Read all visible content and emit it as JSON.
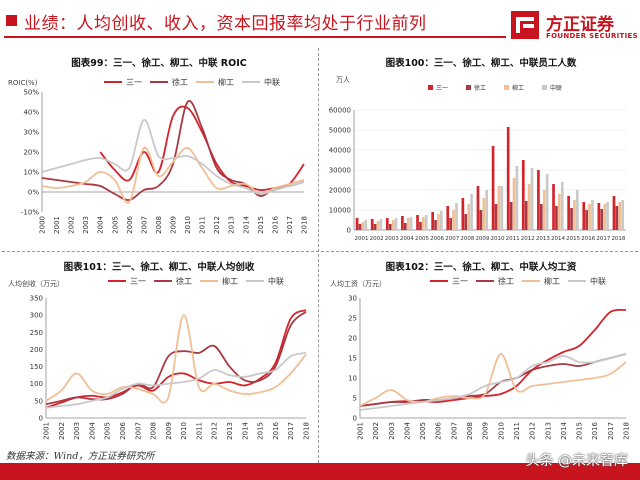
{
  "header": {
    "title": "业绩：人均创收、收入，资本回报率均处于行业前列"
  },
  "logo": {
    "name_cn": "方正证券",
    "name_en": "FOUNDER SECURITIES"
  },
  "source_note": "数据来源：Wind，方正证券研究所",
  "watermark": "头条 @未来智库",
  "colors": {
    "sanyi": "#d4242b",
    "xugong": "#a83a44",
    "liugong": "#f0bf96",
    "zhonglian": "#c9c9c9"
  },
  "chart_data": [
    {
      "type": "line",
      "title": "图表99：三一、徐工、柳工、中联 ROIC",
      "ylabel": "ROIC(%)",
      "ylim": [
        -10,
        50
      ],
      "yticks": [
        "-10%",
        "0%",
        "10%",
        "20%",
        "30%",
        "40%",
        "50%"
      ],
      "categories": [
        "2000",
        "2001",
        "2002",
        "2003",
        "2004",
        "2005",
        "2006",
        "2007",
        "2008",
        "2009",
        "2010",
        "2011",
        "2012",
        "2013",
        "2014",
        "2015",
        "2016",
        "2017",
        "2018"
      ],
      "series": [
        {
          "name": "三一",
          "color": "#d4242b",
          "values": [
            null,
            null,
            null,
            null,
            20,
            11,
            6,
            20,
            10,
            38,
            42,
            30,
            14,
            5,
            3,
            1,
            2,
            4,
            14
          ]
        },
        {
          "name": "徐工",
          "color": "#a83a44",
          "values": [
            7,
            6,
            5,
            4,
            3,
            -1,
            -4,
            1,
            3,
            14,
            45,
            32,
            12,
            6,
            4,
            -2,
            2,
            3,
            5
          ]
        },
        {
          "name": "柳工",
          "color": "#f0bf96",
          "values": [
            3,
            2,
            3,
            5,
            10,
            6,
            -5,
            22,
            8,
            15,
            22,
            12,
            2,
            3,
            4,
            -1,
            2,
            4,
            6
          ]
        },
        {
          "name": "中联",
          "color": "#c9c9c9",
          "values": [
            10,
            12,
            14,
            16,
            17,
            14,
            12,
            36,
            18,
            17,
            18,
            14,
            8,
            4,
            2,
            -1,
            1,
            3,
            5
          ]
        }
      ]
    },
    {
      "type": "bar",
      "title": "图表100：三一、徐工、柳工、中联员工人数",
      "ylabel": "万人",
      "ylim": [
        0,
        60000
      ],
      "yticks": [
        "0",
        "10000",
        "20000",
        "30000",
        "40000",
        "50000",
        "60000"
      ],
      "categories": [
        "2001",
        "2002",
        "2003",
        "2004",
        "2005",
        "2006",
        "2007",
        "2008",
        "2009",
        "2010",
        "2011",
        "2012",
        "2013",
        "2014",
        "2015",
        "2016",
        "2017",
        "2018"
      ],
      "series": [
        {
          "name": "三一",
          "color": "#d4242b",
          "values": [
            6000,
            5500,
            6000,
            7000,
            7500,
            9000,
            12000,
            16000,
            22000,
            42000,
            51500,
            35000,
            30000,
            23000,
            17000,
            14000,
            13500,
            17000
          ]
        },
        {
          "name": "徐工",
          "color": "#a83a44",
          "values": [
            3000,
            3000,
            3000,
            3500,
            4000,
            5000,
            6000,
            8000,
            10000,
            13000,
            14000,
            14500,
            13000,
            12000,
            11000,
            10000,
            10500,
            12000
          ]
        },
        {
          "name": "柳工",
          "color": "#f0bf96",
          "values": [
            4000,
            4500,
            5000,
            6000,
            6500,
            8000,
            10000,
            13000,
            16000,
            22000,
            26000,
            23000,
            20000,
            18000,
            15000,
            13000,
            13000,
            14000
          ]
        },
        {
          "name": "中联",
          "color": "#c9c9c9",
          "values": [
            5000,
            5500,
            6000,
            6500,
            7500,
            9500,
            13500,
            18000,
            20000,
            22000,
            32000,
            31000,
            28000,
            24000,
            20000,
            15000,
            14000,
            15000
          ]
        }
      ]
    },
    {
      "type": "line",
      "title": "图表101：三一、徐工、柳工、中联人均创收",
      "ylabel": "人均创收（万元）",
      "ylim": [
        0,
        350
      ],
      "yticks": [
        "0",
        "50",
        "100",
        "150",
        "200",
        "250",
        "300",
        "350"
      ],
      "categories": [
        "2001",
        "2002",
        "2003",
        "2004",
        "2005",
        "2006",
        "2007",
        "2008",
        "2009",
        "2010",
        "2011",
        "2012",
        "2013",
        "2014",
        "2015",
        "2016",
        "2017",
        "2018"
      ],
      "series": [
        {
          "name": "三一",
          "color": "#d4242b",
          "values": [
            30,
            45,
            60,
            65,
            60,
            75,
            95,
            80,
            120,
            130,
            110,
            100,
            105,
            95,
            115,
            160,
            290,
            315
          ]
        },
        {
          "name": "徐工",
          "color": "#a83a44",
          "values": [
            40,
            50,
            60,
            55,
            55,
            70,
            100,
            90,
            180,
            195,
            190,
            210,
            150,
            110,
            110,
            150,
            270,
            310
          ]
        },
        {
          "name": "柳工",
          "color": "#f0bf96",
          "values": [
            50,
            80,
            130,
            80,
            70,
            90,
            85,
            70,
            60,
            300,
            90,
            100,
            80,
            70,
            75,
            90,
            130,
            185
          ]
        },
        {
          "name": "中联",
          "color": "#c9c9c9",
          "values": [
            30,
            35,
            40,
            50,
            60,
            85,
            100,
            95,
            100,
            105,
            115,
            140,
            125,
            120,
            130,
            140,
            180,
            190
          ]
        }
      ]
    },
    {
      "type": "line",
      "title": "图表102：三一、徐工、柳工、中联人均工资",
      "ylabel": "人均工资（万元）",
      "ylim": [
        0,
        30
      ],
      "yticks": [
        "0",
        "5",
        "10",
        "15",
        "20",
        "25",
        "30"
      ],
      "categories": [
        "2001",
        "2002",
        "2003",
        "2004",
        "2005",
        "2006",
        "2007",
        "2008",
        "2009",
        "2010",
        "2011",
        "2012",
        "2013",
        "2014",
        "2015",
        "2016",
        "2017",
        "2018"
      ],
      "series": [
        {
          "name": "三一",
          "color": "#d4242b",
          "values": [
            3,
            3.5,
            4,
            4.2,
            4.2,
            4,
            4.5,
            5,
            5.5,
            6,
            8,
            12,
            14.5,
            16.5,
            18,
            22,
            26.5,
            27
          ]
        },
        {
          "name": "徐工",
          "color": "#a83a44",
          "values": [
            3,
            3.5,
            4,
            4,
            4.5,
            4.5,
            5,
            5.5,
            6,
            9,
            10,
            12,
            13,
            13.5,
            13,
            14,
            15,
            16
          ]
        },
        {
          "name": "柳工",
          "color": "#f0bf96",
          "values": [
            3,
            5,
            7,
            4.5,
            4,
            5,
            5.5,
            5,
            6,
            16,
            7,
            8,
            8.5,
            9,
            9.5,
            10,
            11,
            14
          ]
        },
        {
          "name": "中联",
          "color": "#c9c9c9",
          "values": [
            2,
            2.5,
            3,
            3.5,
            4,
            4.5,
            5,
            6,
            8,
            9,
            10,
            13,
            14,
            15.5,
            14,
            14,
            15,
            16
          ]
        }
      ]
    }
  ]
}
